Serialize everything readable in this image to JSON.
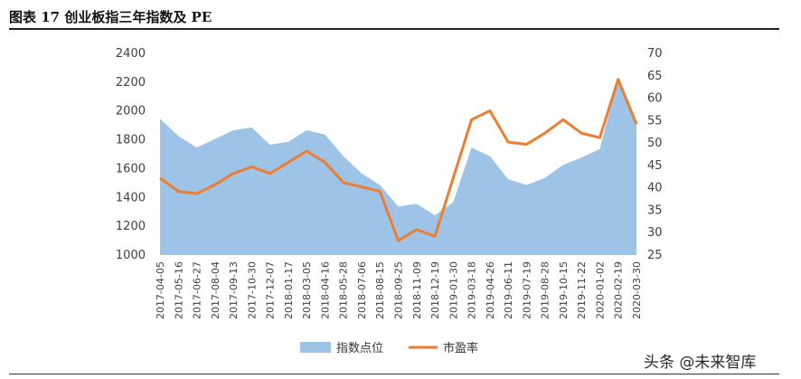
{
  "figure": {
    "title": "图表 17 创业板指三年指数及 PE",
    "watermark": "头条 @未来智库"
  },
  "chart_data": {
    "type": "area",
    "title": "图表 17 创业板指三年指数及 PE",
    "colors": {
      "area": "#9dc3e6",
      "line": "#ed7d31"
    },
    "legend": {
      "placement": "bottom-center"
    },
    "grid": false,
    "y_left": {
      "min": 1000,
      "max": 2400,
      "ticks": [
        1000,
        1200,
        1400,
        1600,
        1800,
        2000,
        2200,
        2400
      ]
    },
    "y_right": {
      "min": 25,
      "max": 70,
      "ticks": [
        25,
        30,
        35,
        40,
        45,
        50,
        55,
        60,
        65,
        70
      ]
    },
    "x_ticks": [
      "2017-04-05",
      "2017-05-16",
      "2017-06-27",
      "2017-08-04",
      "2017-09-13",
      "2017-10-30",
      "2017-12-07",
      "2018-01-17",
      "2018-03-05",
      "2018-04-16",
      "2018-05-28",
      "2018-07-06",
      "2018-08-15",
      "2018-09-25",
      "2018-11-09",
      "2018-12-19",
      "2019-01-30",
      "2019-03-18",
      "2019-04-26",
      "2019-06-11",
      "2019-07-19",
      "2019-08-28",
      "2019-10-15",
      "2019-11-22",
      "2020-01-02",
      "2020-02-19",
      "2020-03-30"
    ],
    "series": [
      {
        "name": "指数点位",
        "kind": "area",
        "axis": "left",
        "x": [
          "2017-04-05",
          "2017-05-16",
          "2017-06-27",
          "2017-08-04",
          "2017-09-13",
          "2017-10-30",
          "2017-12-07",
          "2018-01-17",
          "2018-03-05",
          "2018-04-16",
          "2018-05-28",
          "2018-07-06",
          "2018-08-15",
          "2018-09-25",
          "2018-11-09",
          "2018-12-19",
          "2019-01-30",
          "2019-03-18",
          "2019-04-26",
          "2019-06-11",
          "2019-07-19",
          "2019-08-28",
          "2019-10-15",
          "2019-11-22",
          "2020-01-02",
          "2020-02-19",
          "2020-03-30"
        ],
        "values": [
          1940,
          1820,
          1740,
          1800,
          1860,
          1880,
          1760,
          1780,
          1860,
          1830,
          1680,
          1560,
          1480,
          1330,
          1350,
          1270,
          1360,
          1740,
          1680,
          1520,
          1480,
          1530,
          1620,
          1670,
          1730,
          2220,
          1900
        ]
      },
      {
        "name": "市盈率",
        "kind": "line",
        "axis": "right",
        "x": [
          "2017-04-05",
          "2017-05-16",
          "2017-06-27",
          "2017-08-04",
          "2017-09-13",
          "2017-10-30",
          "2017-12-07",
          "2018-01-17",
          "2018-03-05",
          "2018-04-16",
          "2018-05-28",
          "2018-07-06",
          "2018-08-15",
          "2018-09-25",
          "2018-11-09",
          "2018-12-19",
          "2019-01-30",
          "2019-03-18",
          "2019-04-26",
          "2019-06-11",
          "2019-07-19",
          "2019-08-28",
          "2019-10-15",
          "2019-11-22",
          "2020-01-02",
          "2020-02-19",
          "2020-03-30"
        ],
        "values": [
          42,
          39,
          38.5,
          40.5,
          43,
          44.5,
          43,
          45.5,
          48,
          45.5,
          41,
          40,
          39,
          28,
          30.5,
          29,
          42,
          55,
          57,
          50,
          49.5,
          52,
          55,
          52,
          51,
          64,
          54
        ]
      }
    ]
  }
}
